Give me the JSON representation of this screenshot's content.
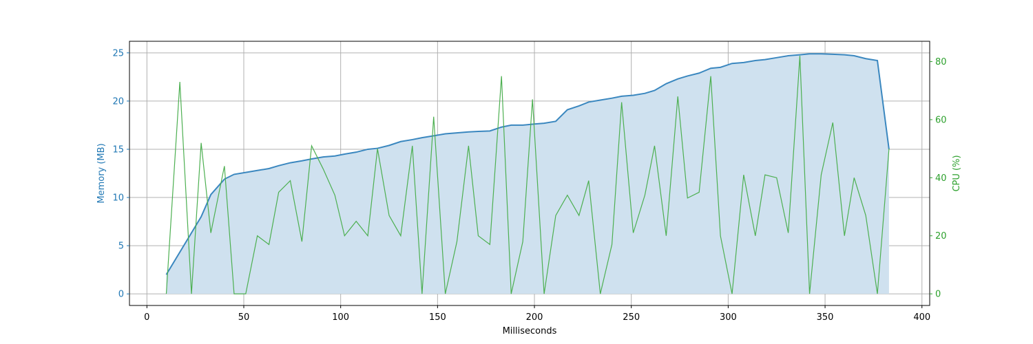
{
  "chart_data": {
    "type": "area",
    "xlabel": "Milliseconds",
    "ylabel_left": "Memory (MB)",
    "ylabel_right": "CPU (%)",
    "xlim": [
      -9,
      404
    ],
    "ylim_left": [
      -1.2,
      26.2
    ],
    "ylim_right": [
      -4,
      87
    ],
    "x_ticks": [
      0,
      50,
      100,
      150,
      200,
      250,
      300,
      350,
      400
    ],
    "y_ticks_left": [
      0,
      5,
      10,
      15,
      20,
      25
    ],
    "y_ticks_right": [
      0,
      20,
      40,
      60,
      80
    ],
    "grid": true,
    "colors": {
      "memory_line": "#3a87bf",
      "memory_fill": "#cfe1ef",
      "memory_axis": "#1f77b4",
      "cpu_line": "#4caf50",
      "cpu_axis": "#2ca02c"
    },
    "series": [
      {
        "axis": "left",
        "type": "area",
        "x": [
          10,
          16,
          22,
          28,
          33,
          40,
          45,
          51,
          57,
          63,
          68,
          74,
          80,
          85,
          91,
          97,
          102,
          108,
          114,
          119,
          125,
          131,
          137,
          142,
          148,
          154,
          160,
          166,
          171,
          177,
          183,
          188,
          194,
          199,
          205,
          211,
          217,
          223,
          228,
          234,
          240,
          245,
          251,
          257,
          262,
          268,
          274,
          279,
          285,
          291,
          296,
          302,
          308,
          314,
          319,
          325,
          331,
          337,
          342,
          348,
          354,
          360,
          365,
          371,
          377,
          383
        ],
        "values": [
          2.0,
          4.0,
          6.0,
          8.0,
          10.3,
          11.9,
          12.4,
          12.6,
          12.8,
          13.0,
          13.3,
          13.6,
          13.8,
          14.0,
          14.2,
          14.3,
          14.5,
          14.7,
          15.0,
          15.1,
          15.4,
          15.8,
          16.0,
          16.2,
          16.4,
          16.6,
          16.7,
          16.8,
          16.85,
          16.9,
          17.3,
          17.5,
          17.5,
          17.6,
          17.7,
          17.9,
          19.1,
          19.5,
          19.9,
          20.1,
          20.3,
          20.5,
          20.6,
          20.8,
          21.1,
          21.8,
          22.3,
          22.6,
          22.9,
          23.4,
          23.5,
          23.9,
          24.0,
          24.2,
          24.3,
          24.5,
          24.7,
          24.8,
          24.9,
          24.9,
          24.85,
          24.8,
          24.7,
          24.4,
          24.2,
          15.0
        ]
      },
      {
        "axis": "right",
        "type": "line",
        "x": [
          10,
          17,
          23,
          28,
          33,
          40,
          45,
          51,
          57,
          63,
          68,
          74,
          80,
          85,
          91,
          97,
          102,
          108,
          114,
          119,
          125,
          131,
          137,
          142,
          148,
          154,
          160,
          166,
          171,
          177,
          183,
          188,
          194,
          199,
          205,
          211,
          217,
          223,
          228,
          234,
          240,
          245,
          251,
          257,
          262,
          268,
          274,
          279,
          285,
          291,
          296,
          302,
          308,
          314,
          319,
          325,
          331,
          337,
          342,
          348,
          354,
          360,
          365,
          371,
          377,
          383
        ],
        "values": [
          0,
          73,
          0,
          52,
          21,
          44,
          0,
          0,
          20,
          17,
          35,
          39,
          18,
          51,
          43,
          34,
          20,
          25,
          20,
          50,
          27,
          20,
          51,
          0,
          61,
          0,
          18,
          51,
          20,
          17,
          75,
          0,
          18,
          67,
          0,
          27,
          34,
          27,
          39,
          0,
          17,
          66,
          21,
          34,
          51,
          20,
          68,
          33,
          35,
          75,
          20,
          0,
          41,
          20,
          41,
          40,
          21,
          82,
          0,
          41,
          59,
          20,
          40,
          27,
          0,
          50
        ]
      }
    ]
  }
}
